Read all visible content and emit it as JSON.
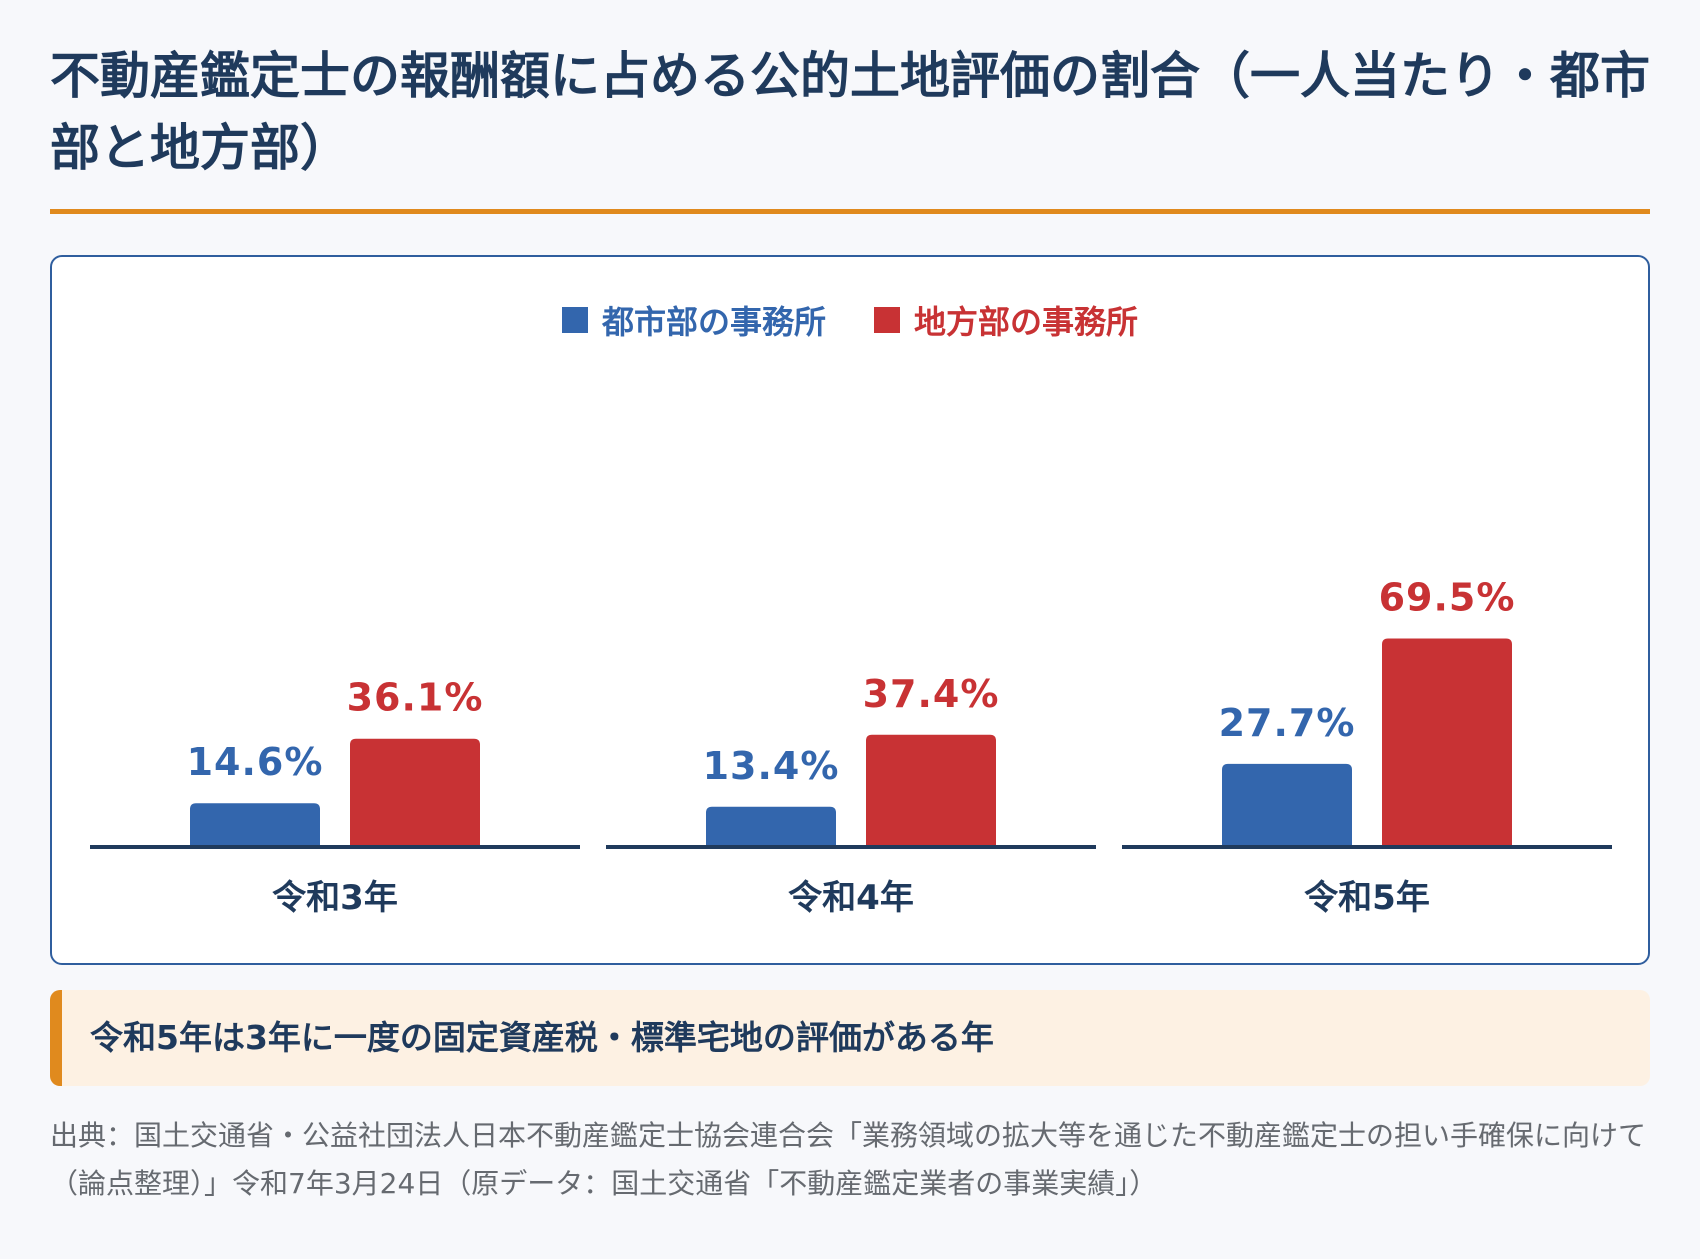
{
  "title": "不動産鑑定士の報酬額に占める公的土地評価の割合（一人当たり・都市部と地方部）",
  "chart_data": {
    "type": "bar",
    "categories": [
      "令和3年",
      "令和4年",
      "令和5年"
    ],
    "series": [
      {
        "name": "都市部の事務所",
        "color": "#3366ad",
        "values": [
          14.6,
          13.4,
          27.7
        ],
        "labels": [
          "14.6%",
          "13.4%",
          "27.7%"
        ]
      },
      {
        "name": "地方部の事務所",
        "color": "#c83234",
        "values": [
          36.1,
          37.4,
          69.5
        ],
        "labels": [
          "36.1%",
          "37.4%",
          "69.5%"
        ]
      }
    ],
    "unit": "%",
    "ylim": [
      0,
      80
    ],
    "grid": false,
    "legend_position": "top"
  },
  "note": "令和5年は3年に一度の固定資産税・標準宅地の評価がある年",
  "source": "出典：国土交通省・公益社団法人日本不動産鑑定士協会連合会「業務領域の拡大等を通じた不動産鑑定士の担い手確保に向けて（論点整理）」令和7年3月24日（原データ：国土交通省「不動産鑑定業者の事業実績」）",
  "colors": {
    "title": "#1f3a5c",
    "accent": "#e08a1e",
    "card_border": "#2f5e9e",
    "note_bg": "#fdf1e3",
    "axis": "#1f3a5c"
  }
}
